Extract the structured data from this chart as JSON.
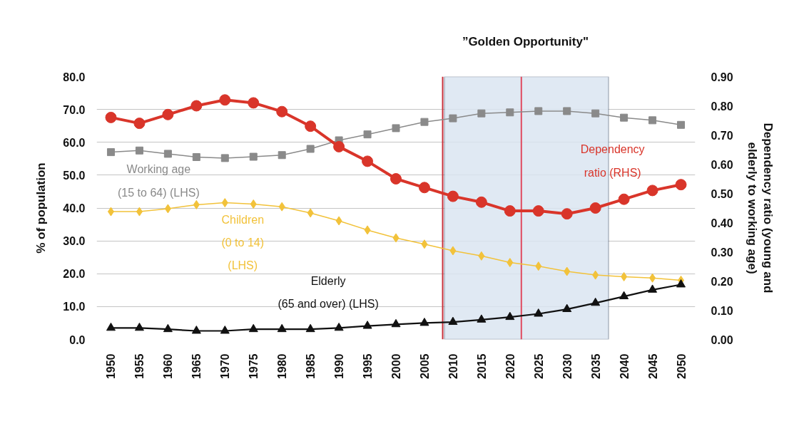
{
  "chart_data": {
    "type": "line",
    "x": [
      1950,
      1955,
      1960,
      1965,
      1970,
      1975,
      1980,
      1985,
      1990,
      1995,
      2000,
      2005,
      2010,
      2015,
      2020,
      2025,
      2030,
      2035,
      2040,
      2045,
      2050
    ],
    "xlim": [
      1947.5,
      2052.5
    ],
    "xticks": [
      1950,
      1955,
      1960,
      1965,
      1970,
      1975,
      1980,
      1985,
      1990,
      1995,
      2000,
      2005,
      2010,
      2015,
      2020,
      2025,
      2030,
      2035,
      2040,
      2045,
      2050
    ],
    "ylim": [
      0,
      80
    ],
    "yticks": [
      {
        "value": 0,
        "label": "0.0"
      },
      {
        "value": 10,
        "label": "10.0"
      },
      {
        "value": 20,
        "label": "20.0"
      },
      {
        "value": 30,
        "label": "30.0"
      },
      {
        "value": 40,
        "label": "40.0"
      },
      {
        "value": 50,
        "label": "50.0"
      },
      {
        "value": 60,
        "label": "60.0"
      },
      {
        "value": 70,
        "label": "70.0"
      },
      {
        "value": 80,
        "label": "80.0"
      }
    ],
    "y2lim": [
      0,
      0.9
    ],
    "y2ticks": [
      {
        "value": 0,
        "label": "0.00"
      },
      {
        "value": 0.1,
        "label": "0.10"
      },
      {
        "value": 0.2,
        "label": "0.20"
      },
      {
        "value": 0.3,
        "label": "0.30"
      },
      {
        "value": 0.4,
        "label": "0.40"
      },
      {
        "value": 0.5,
        "label": "0.50"
      },
      {
        "value": 0.6,
        "label": "0.60"
      },
      {
        "value": 0.7,
        "label": "0.70"
      },
      {
        "value": 0.8,
        "label": "0.80"
      },
      {
        "value": 0.9,
        "label": "0.90"
      }
    ],
    "ylabel": "% of population",
    "y2label": "Dependency ratio (young and elderly to working age)",
    "grid": "y",
    "series": [
      {
        "name": "Working age\n(15 to 64) (LHS)",
        "color": "#8a8a8a",
        "marker": "square",
        "values": [
          57.0,
          57.5,
          56.5,
          55.5,
          55.2,
          55.6,
          56.1,
          58.0,
          60.6,
          62.4,
          64.3,
          66.2,
          67.3,
          68.8,
          69.1,
          69.5,
          69.5,
          68.8,
          67.5,
          66.7,
          65.3
        ]
      },
      {
        "name": "Children\n(0 to 14)\n(LHS)",
        "color": "#f2c23a",
        "marker": "diamond",
        "values": [
          38.9,
          38.9,
          39.8,
          41.0,
          41.6,
          41.2,
          40.4,
          38.5,
          36.1,
          33.3,
          30.9,
          29.0,
          27.0,
          25.4,
          23.4,
          22.3,
          20.7,
          19.6,
          19.1,
          18.7,
          18.0
        ]
      },
      {
        "name": "Elderly\n(65 and over) (LHS)",
        "color": "#111111",
        "marker": "triangle",
        "values": [
          3.5,
          3.5,
          3.1,
          2.6,
          2.6,
          3.1,
          3.1,
          3.1,
          3.5,
          4.1,
          4.6,
          5.0,
          5.3,
          6.0,
          6.8,
          7.8,
          9.2,
          11.1,
          13.1,
          15.1,
          16.7
        ]
      },
      {
        "name": "Dependency\nratio (RHS)",
        "color": "#d9352a",
        "marker": "circle",
        "axis": "y2",
        "values": [
          0.76,
          0.74,
          0.77,
          0.8,
          0.82,
          0.81,
          0.78,
          0.73,
          0.66,
          0.61,
          0.55,
          0.52,
          0.49,
          0.47,
          0.44,
          0.44,
          0.43,
          0.45,
          0.48,
          0.51,
          0.53
        ]
      }
    ],
    "bands": [
      {
        "axis": "x",
        "from": 2008.5,
        "to": 2037.3,
        "color": "#dbe5f1",
        "label": "”Golden Opportunity\""
      }
    ],
    "ref_lines": [
      {
        "axis": "x",
        "value": 2008.2,
        "color": "#c8303a"
      },
      {
        "axis": "x",
        "value": 2022,
        "color": "#e04a5e"
      }
    ]
  }
}
